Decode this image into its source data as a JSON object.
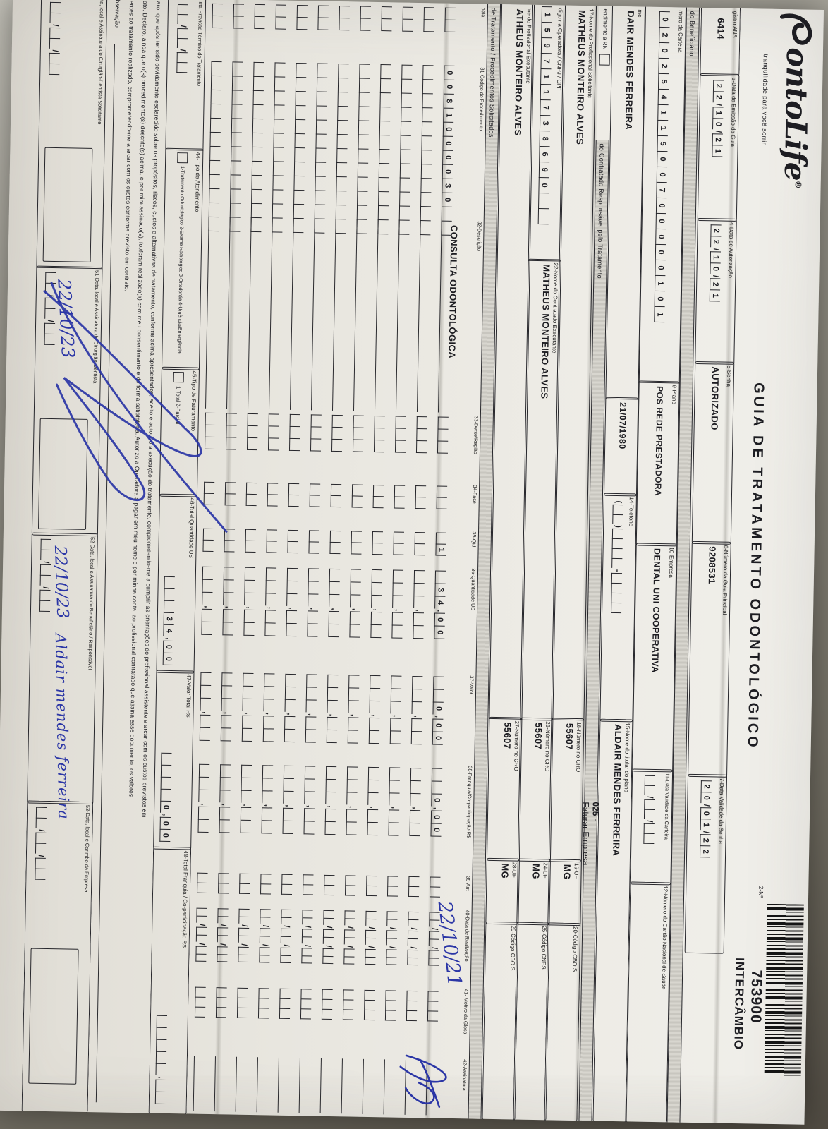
{
  "brand": {
    "logo_text": "ontoLife",
    "logo_reg": "®",
    "tagline": "tranquilidade para você sorrir"
  },
  "header": {
    "title": "GUIA DE TRATAMENTO ODONTOLÓGICO",
    "no_label": "2-Nº",
    "code_number": "753900",
    "code_text": "INTERCÂMBIO"
  },
  "ans": {
    "label": "gistro ANS",
    "value": "6414"
  },
  "f3": {
    "label": "3-Data de Emissão da Guia",
    "boxes": [
      "2",
      "2",
      "/",
      "1",
      "0",
      "/",
      "2",
      "1"
    ]
  },
  "f4": {
    "label": "4-Data de Autorização",
    "boxes": [
      "2",
      "2",
      "/",
      "1",
      "0",
      "/",
      "2",
      "1"
    ]
  },
  "f5": {
    "label": "5-Senha",
    "value": "AUTORIZADO"
  },
  "f6": {
    "label": "6-Número da Guia Principal",
    "value": "9208531"
  },
  "f7": {
    "label": "7-Data Validade da Senha",
    "boxes": [
      "2",
      "0",
      "/",
      "0",
      "1",
      "/",
      "2",
      "2"
    ]
  },
  "sec_beneficiario": {
    "label": "do Beneficiário"
  },
  "f8": {
    "label": "mero da Carteira",
    "boxes": [
      "0",
      "2",
      "0",
      "2",
      "5",
      "4",
      "1",
      "1",
      "5",
      "0",
      "0",
      "7",
      "0",
      "0",
      "0",
      "0",
      "0",
      "1",
      "0",
      "1"
    ]
  },
  "f9": {
    "label": "9-Plano",
    "value": "POS REDE PRESTADORA"
  },
  "f10": {
    "label": "10-Empresa",
    "value": "DENTAL UNI  COOPERATIVA"
  },
  "f11": {
    "label": "11-Data Validade da Carteira",
    "boxes": [
      "",
      "",
      "/",
      "",
      "",
      "/",
      "",
      ""
    ]
  },
  "f12": {
    "label": "12-Número do Cartão Nacional de Saúde"
  },
  "f13": {
    "label": "me",
    "value": "DAIR MENDES FERREIRA"
  },
  "f_nascimento": {
    "value": "21/07/1980"
  },
  "f14": {
    "label": "14-Telefone",
    "boxes": [
      "(",
      "",
      "",
      ")",
      "",
      "",
      "",
      "",
      "-",
      "",
      "",
      "",
      ""
    ]
  },
  "f15": {
    "label": "15-Nome do titular do plano",
    "value": "ALDAIR MENDES FERREIRA"
  },
  "f_rn": {
    "label": "endimento a RN"
  },
  "sec_contratado": {
    "label": "do Contratado Responsável pelo Tratamento"
  },
  "f17": {
    "label": "17-Nome do Profissional Solicitante",
    "value": "MATHEUS MONTEIRO ALVES"
  },
  "f18": {
    "label": "18-Número no CRO",
    "value": "55607"
  },
  "f19": {
    "label": "19-UF",
    "value": "MG"
  },
  "f20": {
    "label": "20-Código CBO S"
  },
  "stamp": {
    "line1": "025 -",
    "line2": "Faturar Empresa"
  },
  "f21": {
    "label": "digo na Operadora / CNPJ / CPF",
    "boxes": [
      "1",
      "5",
      "9",
      "7",
      "1",
      "1",
      "7",
      "3",
      "8",
      "6",
      "9",
      "0",
      "",
      ""
    ]
  },
  "f22": {
    "label": "22-Nome do Contratado Executante",
    "value": "MATHEUS MONTEIRO ALVES"
  },
  "f23": {
    "label": "23-Número no CRO",
    "value": "55607"
  },
  "f24": {
    "label": "24-UF",
    "value": "MG"
  },
  "f25": {
    "label": "25-Código CNES"
  },
  "f26": {
    "label": "me do Profissional Executante",
    "value": "ATHEUS MONTEIRO ALVES"
  },
  "f27": {
    "label": "27-Número no CRO",
    "value": "55607"
  },
  "f28": {
    "label": "28-UF",
    "value": "MG"
  },
  "f29": {
    "label": "29-Código CBO S"
  },
  "sec_tratamento": {
    "label": "de Tratamento / Procedimentos Solicitados"
  },
  "table": {
    "empty_rows": 11,
    "headers": {
      "tabela": "bela",
      "codigo": "31-Código do Procedimento",
      "descricao": "32-Descrição",
      "dente": "33-Dente/Região",
      "face": "34-Face",
      "qtd": "35-Qtd",
      "qtd_us": "36-Quantidade US",
      "valor": "37-Valor",
      "franquia": "38-Franquia/Co-participação R$",
      "aut": "39-Aut",
      "data": "40-Data de Realização",
      "motivo": "41- Motivo da Glosa",
      "assinatura": "42-Assinatura"
    },
    "row1": {
      "codigo": [
        "0",
        "0",
        "8",
        "1",
        "0",
        "0",
        "0",
        "0",
        "3",
        "0",
        "",
        ""
      ],
      "descricao": "CONSULTA ODONTOLÓGICA",
      "qtd": [
        "",
        "1"
      ],
      "qtd_us": [
        "",
        "3",
        "4",
        ",",
        "0",
        "0"
      ],
      "valor": [
        "",
        "",
        "0",
        ",",
        "0",
        "0"
      ],
      "franquia": [
        "",
        "",
        "0",
        ",",
        "0",
        "0"
      ],
      "data_handwritten": "22/10/21"
    }
  },
  "totals": {
    "previsao": {
      "label": "sta Previsão Término do Tratamento",
      "boxes": [
        "",
        "",
        "/",
        "",
        "",
        "/",
        "",
        ""
      ]
    },
    "f44": {
      "label": "44-Tipo de Atendimento",
      "options": "1-Tratamento Odontológico   2-Exame Radiológico   3-Ortodontia   4-Urgência/Emergência"
    },
    "f45": {
      "label": "45-Tipo de Faturamento",
      "options": "1-Total  2-Parcial"
    },
    "f46": {
      "label": "46-Total Quantidade US",
      "boxes": [
        "",
        "",
        "",
        "3",
        "4",
        ",",
        "0",
        "0"
      ]
    },
    "f47": {
      "label": "47-Valor Total R$",
      "boxes": [
        "",
        "",
        "",
        "",
        "0",
        ",",
        "0",
        "0"
      ]
    },
    "f48": {
      "label": "48-Total Franquia / Co-participação R$",
      "boxes": [
        "",
        "",
        "",
        "",
        "",
        ",",
        "",
        ""
      ]
    }
  },
  "declaration": {
    "line1": "aro, que após ter sido devidamente esclarecido sobre os propósitos, riscos, custos e alternativas de tratamento, conforme acima apresentados, aceito e autorizo a execução do tratamento, comprometendo-me a cumprir as orientações do profissional assistente e arcar com os custos previstos em",
    "line2": "ato. Declaro, ainda que o(s) procedimento(s) descrito(s) acima, e por mim assinado(s), foi/foram realizado(s) com meu consentimento e de forma satisfatória. Autorizo a Operadora a pagar em meu nome e por minha conta, ao profissional contratado que assina esse documento, os valores",
    "line3": "entes ao tratamento realizado, comprometendo-me a arcar com os custos conforme previsto em contrato."
  },
  "observacao": {
    "label": "bservação"
  },
  "signatures": {
    "s50": {
      "label": "ta, local e Assinatura do Cirurgião-Dentista Solicitante"
    },
    "s51": {
      "label": "51-Data, local e Assinatura do Cirurgião-Dentista",
      "handwritten_date": "22/10/23"
    },
    "s52": {
      "label": "52-Data, local e Assinatura do Beneficiário / Responsável",
      "handwritten_date": "22/10/23",
      "handwritten_name": "Aldair mendes ferreira"
    },
    "s53": {
      "label": "53-Data, local e Carimbo da Empresa"
    }
  }
}
